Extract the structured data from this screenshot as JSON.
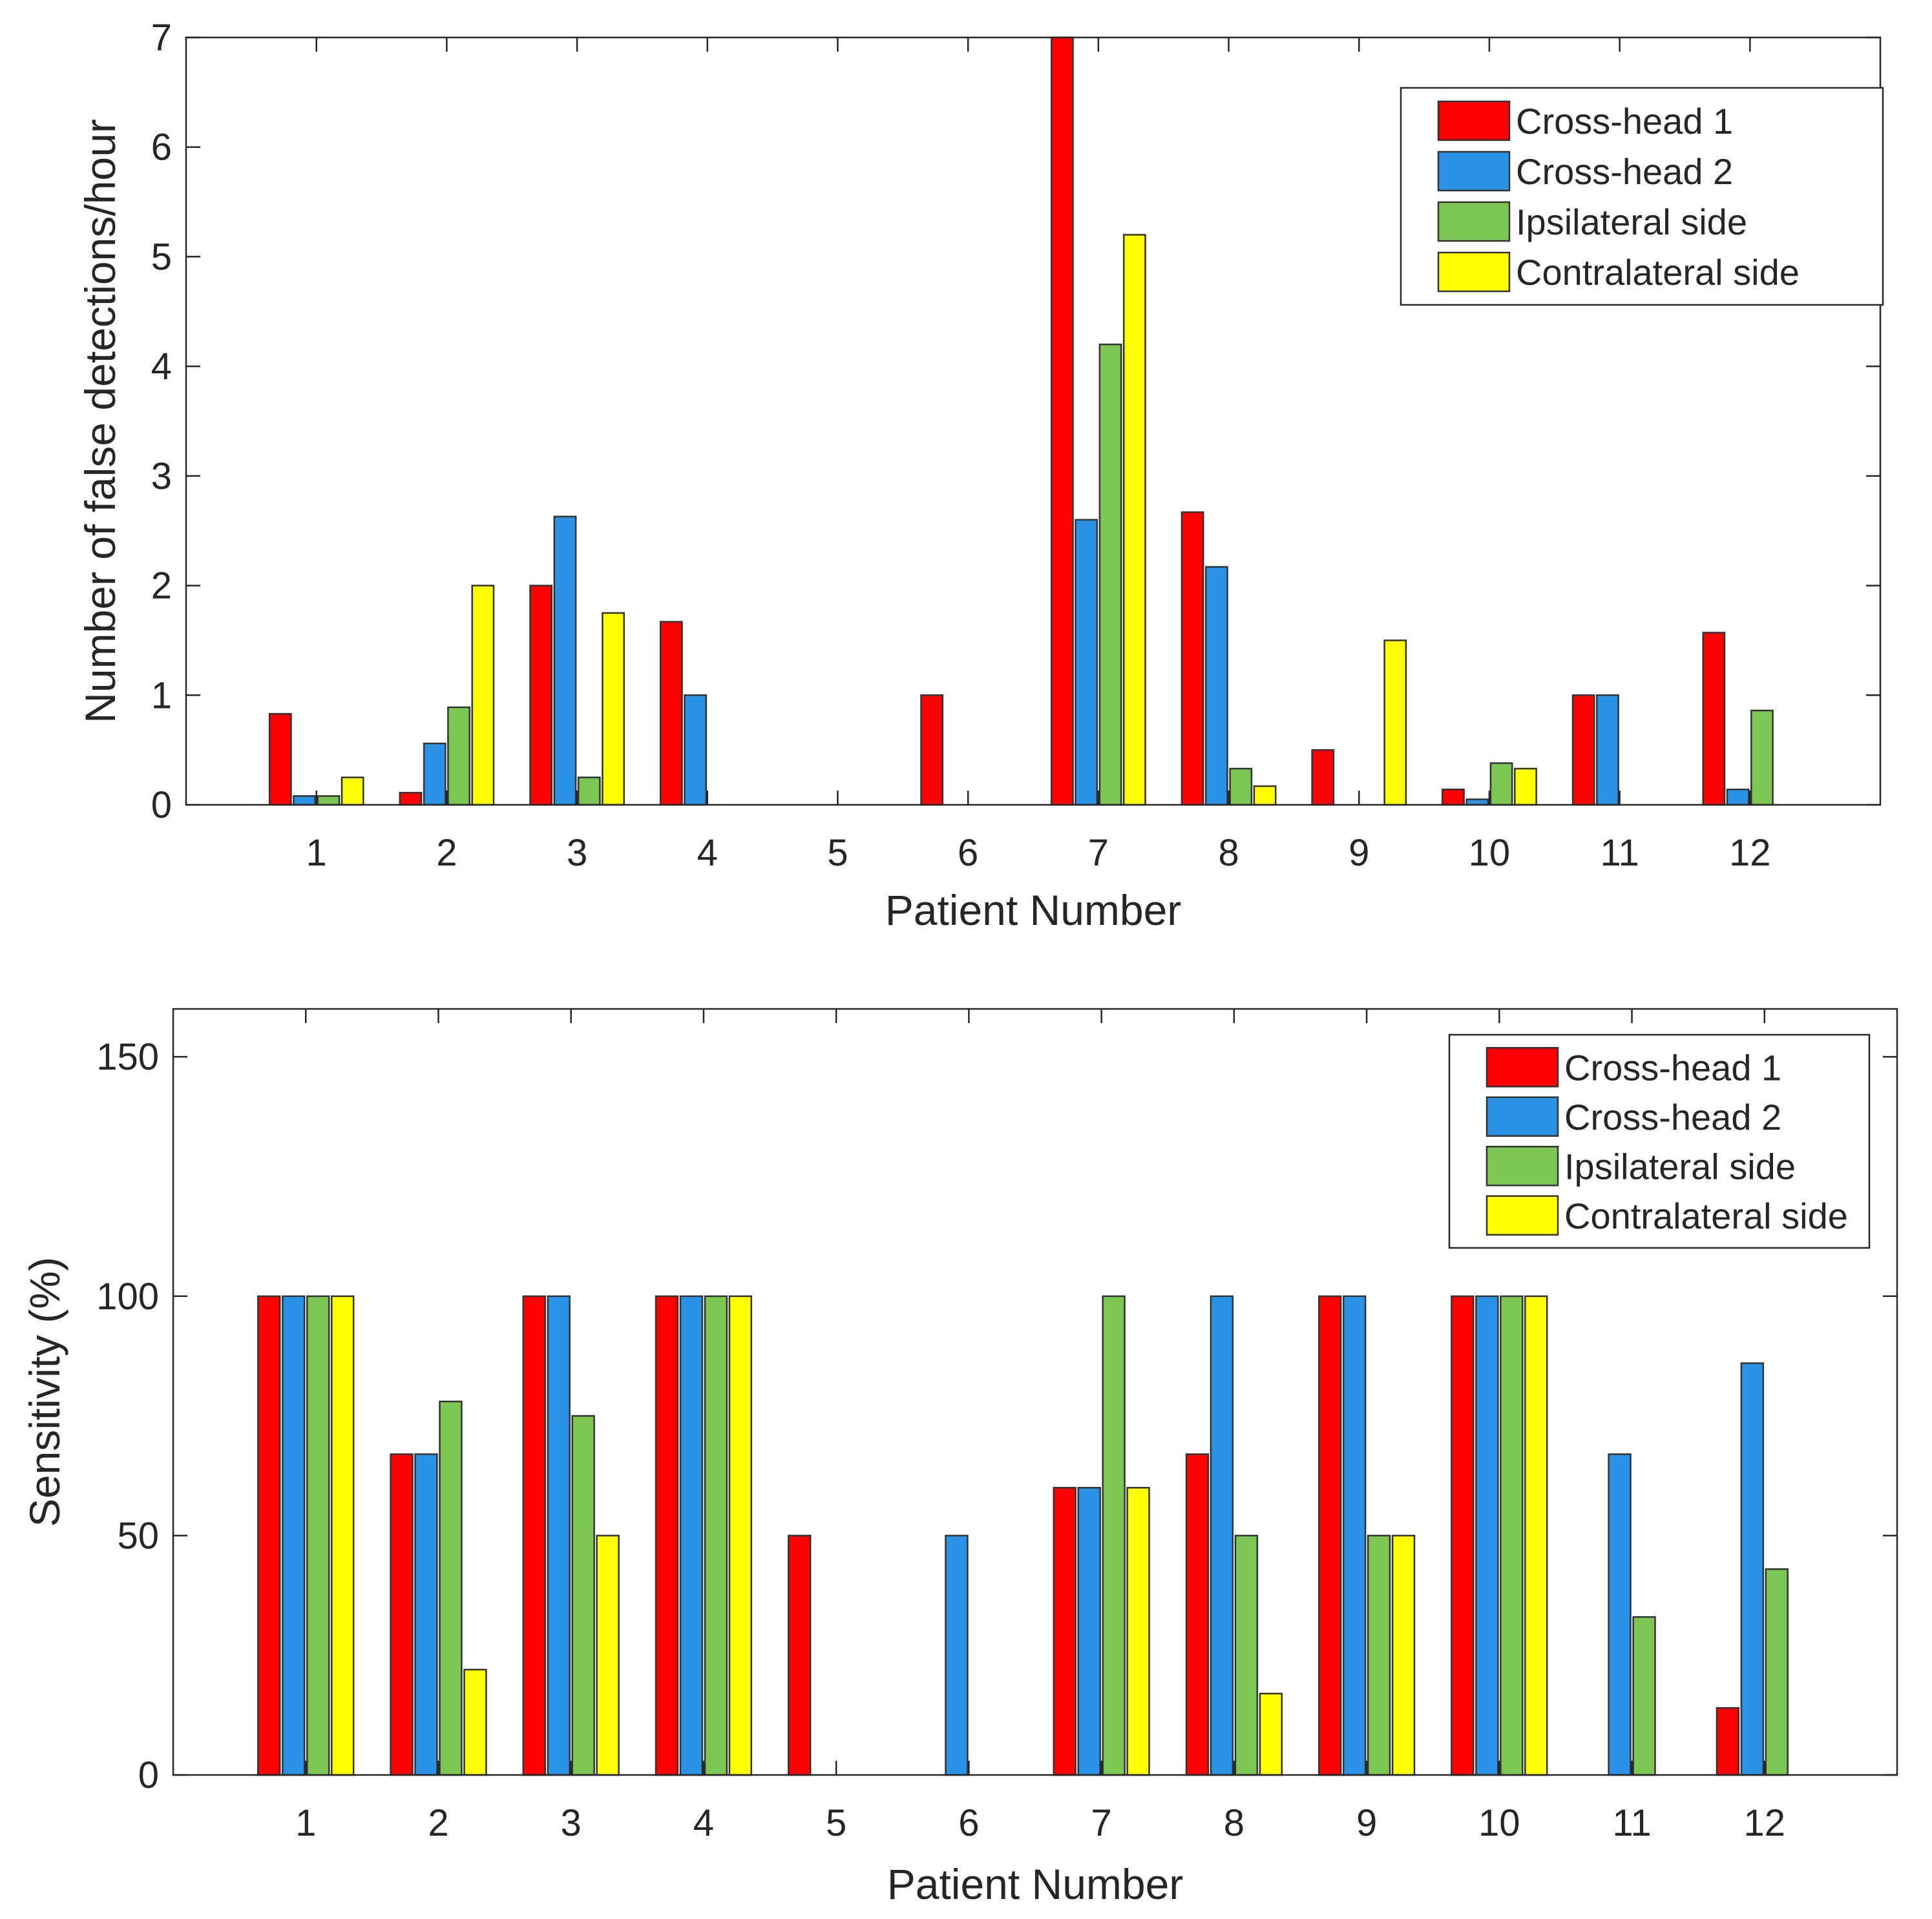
{
  "colors": {
    "series": [
      "#ff0000",
      "#2a93e6",
      "#7cc653",
      "#ffff00"
    ],
    "axis": "#262626",
    "bar_edge": "#333333",
    "background": "#ffffff"
  },
  "chart_data": [
    {
      "type": "bar",
      "title": "",
      "xlabel": "Patient Number",
      "ylabel": "Number of false detections/hour",
      "categories": [
        "1",
        "2",
        "3",
        "4",
        "5",
        "6",
        "7",
        "8",
        "9",
        "10",
        "11",
        "12"
      ],
      "ylim": [
        0,
        7
      ],
      "yticks": [
        "0",
        "1",
        "2",
        "3",
        "4",
        "5",
        "6",
        "7"
      ],
      "legend_position": "top-right",
      "grid": false,
      "series": [
        {
          "name": "Cross-head 1",
          "values": [
            0.83,
            0.11,
            2.0,
            1.67,
            0,
            1.0,
            7.0,
            2.67,
            0.5,
            0.14,
            1.0,
            1.57
          ]
        },
        {
          "name": "Cross-head 2",
          "values": [
            0.08,
            0.56,
            2.63,
            1.0,
            0,
            0,
            2.6,
            2.17,
            0,
            0.05,
            1.0,
            0.14
          ]
        },
        {
          "name": "Ipsilateral side",
          "values": [
            0.08,
            0.89,
            0.25,
            0,
            0,
            0,
            4.2,
            0.33,
            0,
            0.38,
            0,
            0.86
          ]
        },
        {
          "name": "Contralateral side",
          "values": [
            0.25,
            2.0,
            1.75,
            0,
            0,
            0,
            5.2,
            0.17,
            1.5,
            0.33,
            0,
            0
          ]
        }
      ]
    },
    {
      "type": "bar",
      "title": "",
      "xlabel": "Patient Number",
      "ylabel": "Sensitivity (%)",
      "categories": [
        "1",
        "2",
        "3",
        "4",
        "5",
        "6",
        "7",
        "8",
        "9",
        "10",
        "11",
        "12"
      ],
      "ylim": [
        0,
        160
      ],
      "yticks": [
        "0",
        "50",
        "100",
        "150"
      ],
      "legend_position": "top-right",
      "grid": false,
      "series": [
        {
          "name": "Cross-head 1",
          "values": [
            100,
            67,
            100,
            100,
            50,
            0,
            60,
            67,
            100,
            100,
            0,
            14
          ]
        },
        {
          "name": "Cross-head 2",
          "values": [
            100,
            67,
            100,
            100,
            0,
            50,
            60,
            100,
            100,
            100,
            67,
            86
          ]
        },
        {
          "name": "Ipsilateral side",
          "values": [
            100,
            78,
            75,
            100,
            0,
            0,
            100,
            50,
            50,
            100,
            33,
            43
          ]
        },
        {
          "name": "Contralateral side",
          "values": [
            100,
            22,
            50,
            100,
            0,
            0,
            60,
            17,
            50,
            100,
            0,
            0
          ]
        }
      ]
    }
  ]
}
